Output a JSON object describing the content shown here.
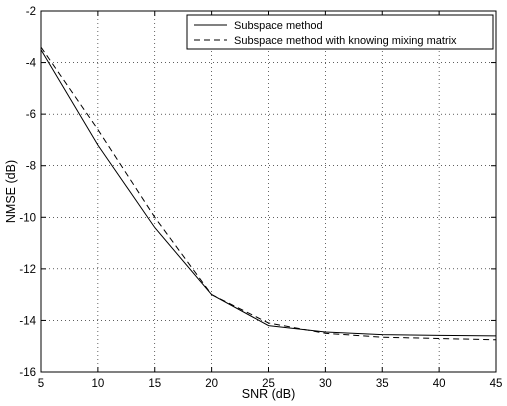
{
  "chart_data": {
    "type": "line",
    "title": "",
    "xlabel": "SNR (dB)",
    "ylabel": "NMSE (dB)",
    "xlim": [
      5,
      45
    ],
    "ylim": [
      -16,
      -2
    ],
    "xticks": [
      5,
      10,
      15,
      20,
      25,
      30,
      35,
      40,
      45
    ],
    "yticks": [
      -16,
      -14,
      -12,
      -10,
      -8,
      -6,
      -4,
      -2
    ],
    "x": [
      5,
      10,
      15,
      20,
      25,
      30,
      35,
      40,
      45
    ],
    "grid": true,
    "legend_position": "top-right",
    "series": [
      {
        "name": "Subspace method",
        "style": "solid",
        "color": "#000000",
        "values": [
          -3.5,
          -7.2,
          -10.4,
          -13.0,
          -14.2,
          -14.45,
          -14.55,
          -14.58,
          -14.6
        ]
      },
      {
        "name": "Subspace method with knowing mixing matrix",
        "style": "dashed",
        "color": "#000000",
        "values": [
          -3.4,
          -6.6,
          -10.0,
          -13.0,
          -14.1,
          -14.5,
          -14.65,
          -14.7,
          -14.75
        ]
      }
    ]
  }
}
